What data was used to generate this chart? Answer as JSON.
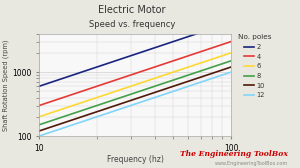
{
  "title1": "Electric Motor",
  "title2": "Speed vs. frequency",
  "xlabel": "Frequency (hz)",
  "ylabel": "Shaft Rotation Speed (rpm)",
  "background_color": "#e8e8e0",
  "plot_bg_color": "#f8f8f8",
  "watermark": "The Engineering ToolBox",
  "watermark_url": "www.EngineeringToolBox.com",
  "watermark_color": "#cc0000",
  "xlim": [
    10,
    100
  ],
  "ylim": [
    100,
    4000
  ],
  "poles": [
    2,
    4,
    6,
    8,
    10,
    12
  ],
  "line_colors": [
    "#1a237e",
    "#e53935",
    "#fdd835",
    "#43a047",
    "#4e1a0a",
    "#81d4fa"
  ],
  "legend_title": "No. poles",
  "grid_color": "#d0d0d0"
}
